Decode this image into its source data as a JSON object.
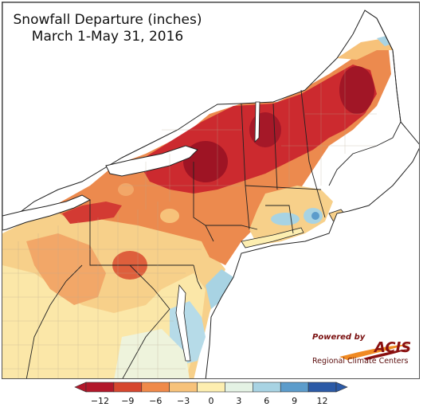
{
  "title": {
    "line1": "Snowfall Departure (inches)",
    "line2": "March 1-May 31, 2016"
  },
  "logo": {
    "powered_by": "Powered by",
    "acis": "ACIS",
    "org": "Regional Climate Centers"
  },
  "legend": {
    "ticks": [
      "−12",
      "−9",
      "−6",
      "−3",
      "0",
      "3",
      "6",
      "9",
      "12"
    ],
    "colors": [
      "#b2182b",
      "#d6472f",
      "#ef8a4a",
      "#f7c27a",
      "#fdeeb0",
      "#e4f2e4",
      "#a8d3e3",
      "#5c9ccb",
      "#2c5aa6"
    ]
  },
  "map_colors": {
    "water": "#ffffff",
    "land_outside": "#ffffff",
    "border": "#222222",
    "county": "#b8a890"
  }
}
